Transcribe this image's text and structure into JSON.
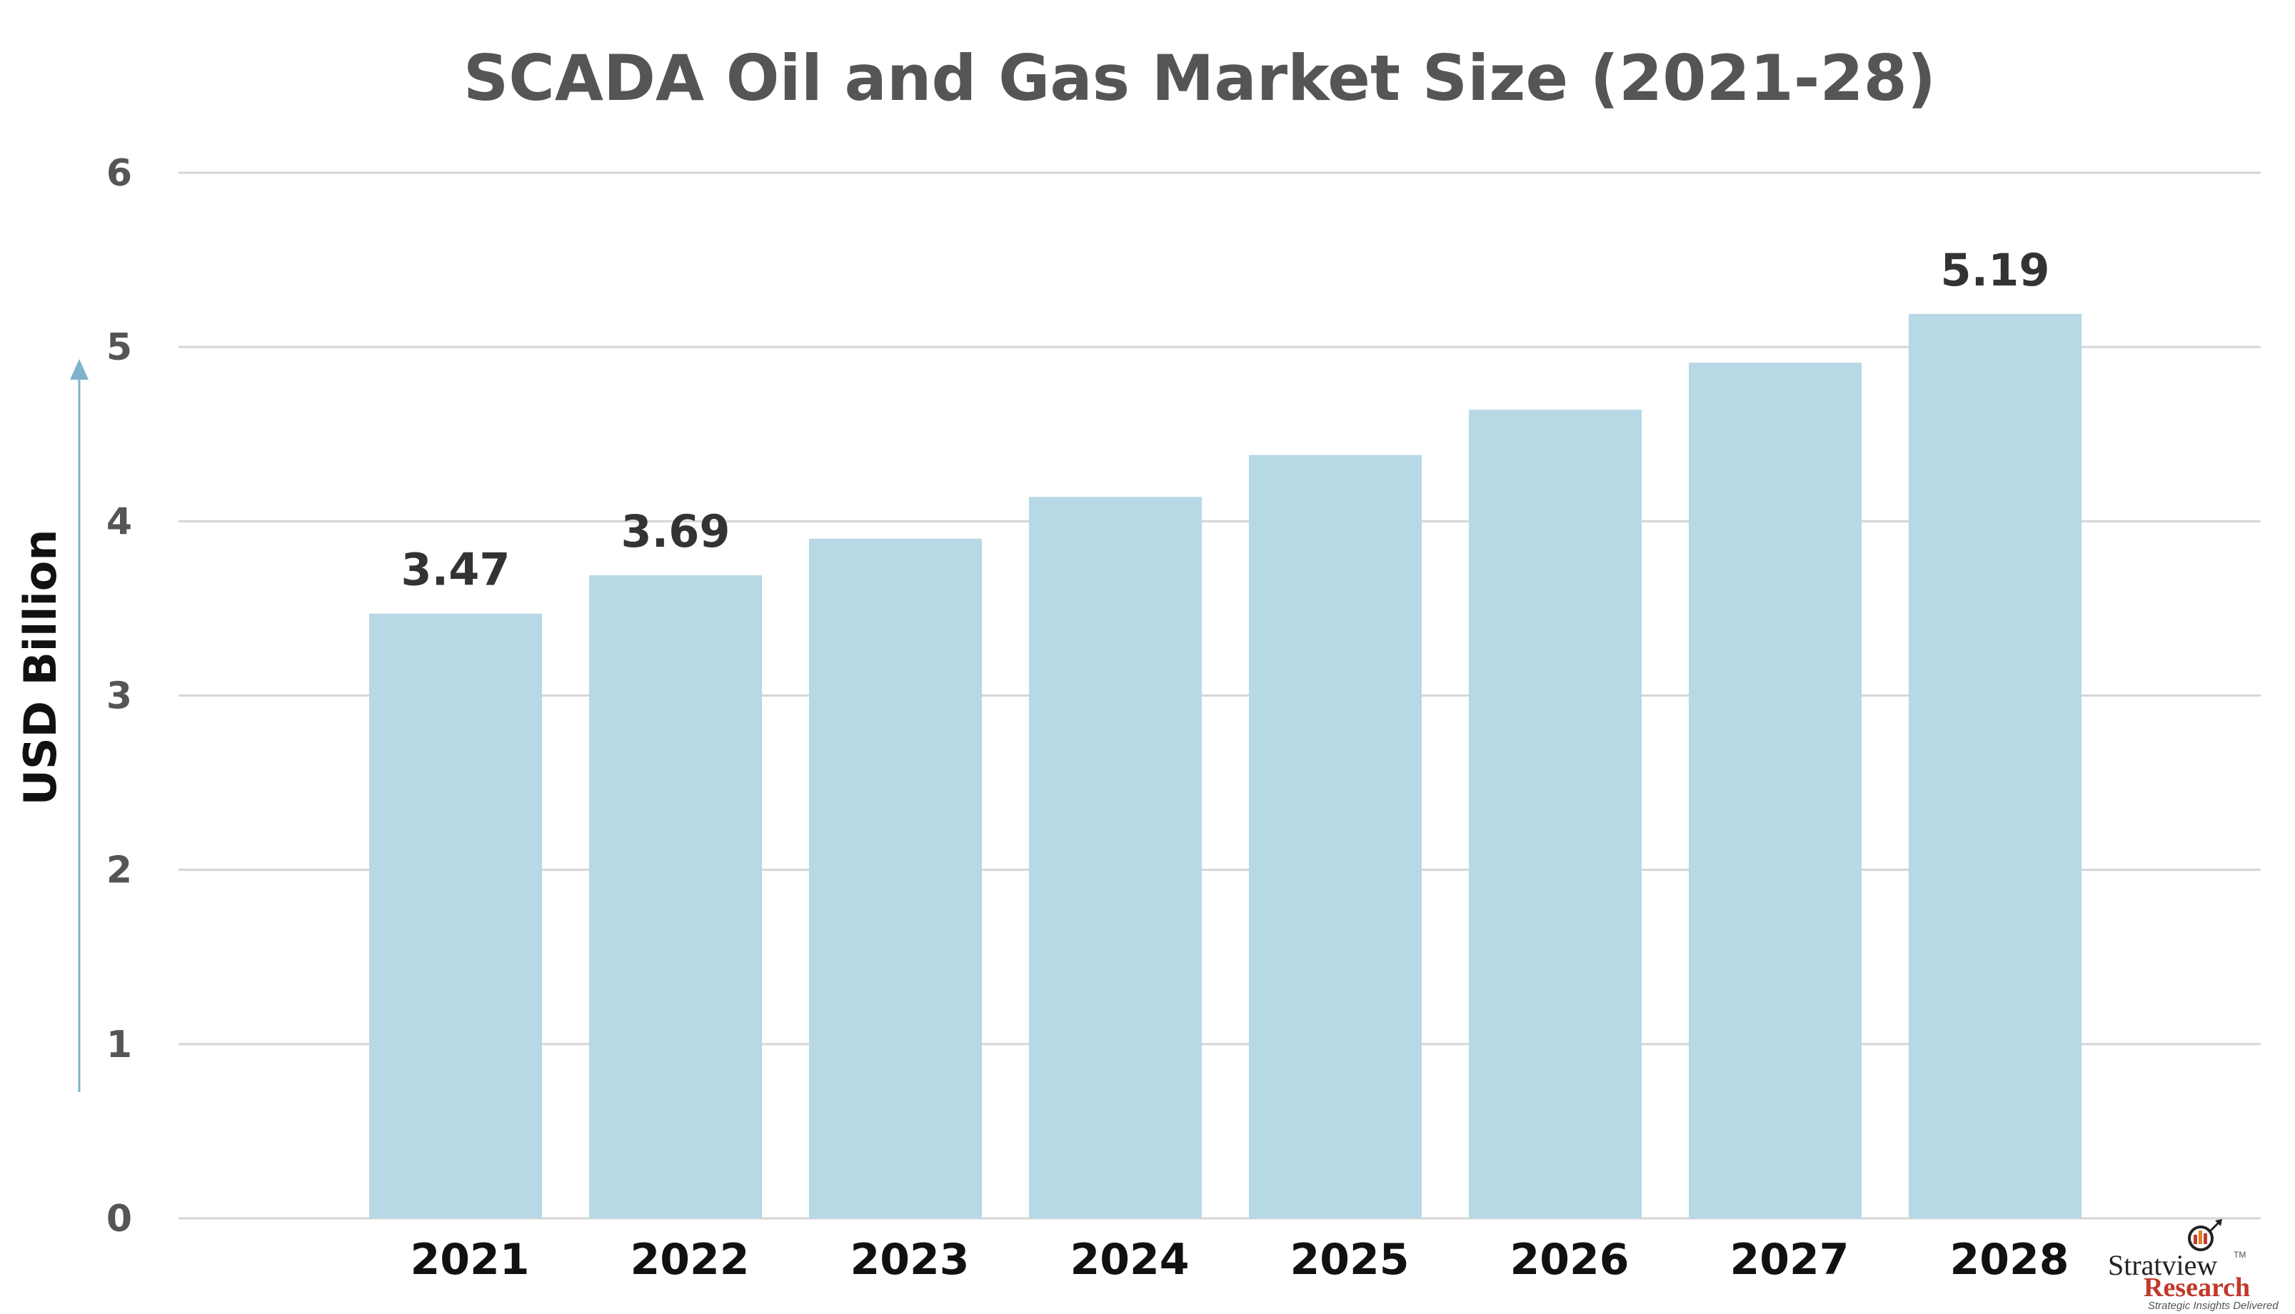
{
  "chart_data": {
    "type": "bar",
    "title": "SCADA Oil and Gas Market Size (2021-28)",
    "xlabel": "",
    "ylabel": "USD Billion",
    "categories": [
      "2021",
      "2022",
      "2023",
      "2024",
      "2025",
      "2026",
      "2027",
      "2028"
    ],
    "values": [
      3.47,
      3.69,
      3.9,
      4.14,
      4.38,
      4.64,
      4.91,
      5.19
    ],
    "data_labels": [
      "3.47",
      "3.69",
      "",
      "",
      "",
      "",
      "",
      "5.19"
    ],
    "ylim": [
      0,
      6
    ],
    "yticks": [
      "0",
      "1",
      "2",
      "3",
      "4",
      "5",
      "6"
    ],
    "grid": true,
    "legend": "none",
    "colors": {
      "bar": "#b7d8e5",
      "grid": "#d5d5d5",
      "axis_arrow": "#7fb3cc"
    }
  },
  "logo": {
    "name": "Stratview",
    "sub": "Research",
    "tagline": "Strategic Insights Delivered",
    "tm": "TM"
  }
}
